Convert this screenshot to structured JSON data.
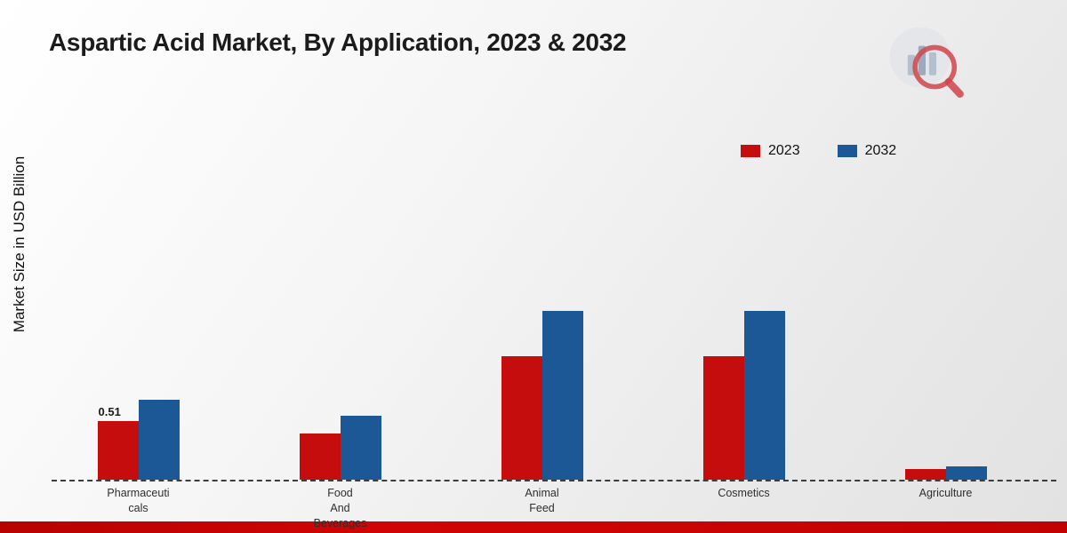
{
  "title": "Aspartic Acid Market, By Application, 2023 & 2032",
  "y_axis_label": "Market Size in USD Billion",
  "legend": [
    {
      "label": "2023",
      "color": "#c50d0d"
    },
    {
      "label": "2032",
      "color": "#1c5796"
    }
  ],
  "icons": {
    "brand_logo": "bar-chart-magnifier-logo"
  },
  "colors": {
    "series_2023": "#c50d0d",
    "series_2032": "#1c5796",
    "baseline": "#3c3c3c",
    "bottom_strip": "#c20202"
  },
  "chart_data": {
    "type": "bar",
    "title": "Aspartic Acid Market, By Application, 2023 & 2032",
    "xlabel": "",
    "ylabel": "Market Size in USD Billion",
    "categories": [
      "Pharmaceuticals",
      "Food And Beverages",
      "Animal Feed",
      "Cosmetics",
      "Agriculture"
    ],
    "category_display": [
      [
        "Pharmaceuti",
        "cals"
      ],
      [
        "Food",
        "And",
        "Beverages"
      ],
      [
        "Animal",
        "Feed"
      ],
      [
        "Cosmetics"
      ],
      [
        "Agriculture"
      ]
    ],
    "series": [
      {
        "name": "2023",
        "color": "#c50d0d",
        "values": [
          0.51,
          0.4,
          1.08,
          1.08,
          0.09
        ]
      },
      {
        "name": "2032",
        "color": "#1c5796",
        "values": [
          0.7,
          0.56,
          1.47,
          1.47,
          0.12
        ]
      }
    ],
    "annotations": [
      {
        "category": "Pharmaceuticals",
        "series": "2023",
        "text": "0.51"
      }
    ],
    "ylim": [
      0,
      3.1
    ],
    "grid": false,
    "legend_position": "top-right",
    "baseline_style": "dashed"
  }
}
